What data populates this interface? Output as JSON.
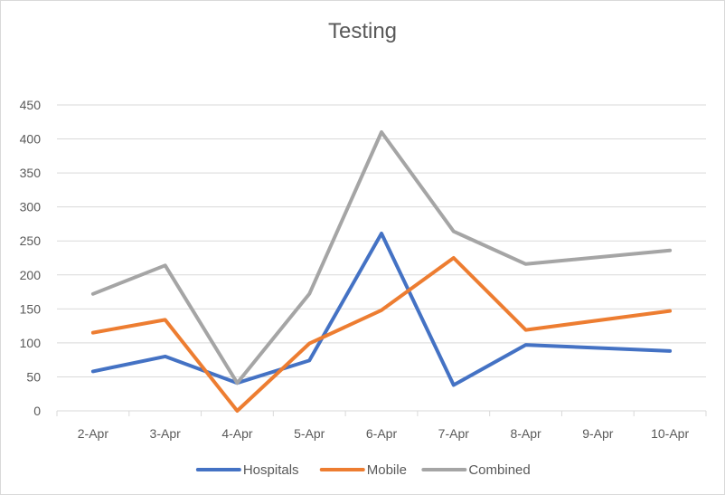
{
  "chart_data": {
    "type": "line",
    "title": "Testing",
    "xlabel": "",
    "ylabel": "",
    "categories": [
      "2-Apr",
      "3-Apr",
      "4-Apr",
      "5-Apr",
      "6-Apr",
      "7-Apr",
      "8-Apr",
      "9-Apr",
      "10-Apr"
    ],
    "ylim": [
      0,
      450
    ],
    "yticks": [
      0,
      50,
      100,
      150,
      200,
      250,
      300,
      350,
      400,
      450
    ],
    "grid": true,
    "legend_position": "bottom",
    "series": [
      {
        "name": "Hospitals",
        "color": "#4472C4",
        "values": [
          58,
          80,
          41,
          74,
          261,
          38,
          97,
          null,
          88
        ]
      },
      {
        "name": "Mobile",
        "color": "#ED7D31",
        "values": [
          115,
          134,
          0,
          99,
          148,
          225,
          119,
          null,
          147
        ]
      },
      {
        "name": "Combined",
        "color": "#A5A5A5",
        "values": [
          172,
          214,
          41,
          172,
          410,
          264,
          216,
          null,
          236
        ]
      }
    ]
  }
}
